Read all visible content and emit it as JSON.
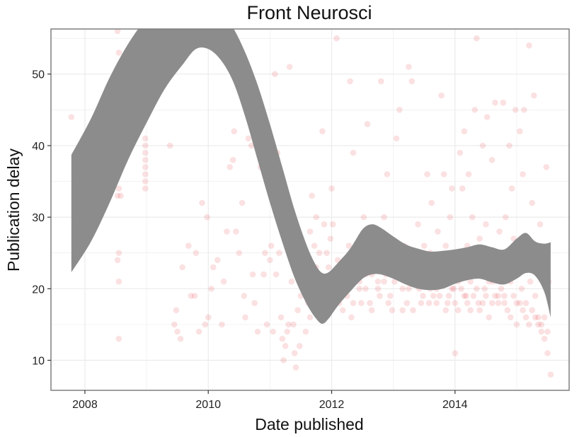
{
  "chart_data": {
    "type": "scatter",
    "title": "Front Neurosci",
    "xlabel": "Date published",
    "ylabel": "Publication delay",
    "xlim": [
      2007.45,
      2015.85
    ],
    "ylim": [
      5.8,
      56.3
    ],
    "x_ticks": [
      2008,
      2010,
      2012,
      2014
    ],
    "x_tick_labels": [
      "2008",
      "2010",
      "2012",
      "2014"
    ],
    "y_ticks": [
      10,
      20,
      30,
      40,
      50
    ],
    "y_tick_labels": [
      "10",
      "20",
      "30",
      "40",
      "50"
    ],
    "grid": true,
    "point_color": "#e31a1c",
    "point_opacity": 0.13,
    "ribbon_color": "#8c8c8c",
    "background_color": "#ffffff",
    "grid_color": "#ebebeb",
    "panel_border_color": "#7f7f7f",
    "points": [
      [
        2007.78,
        44
      ],
      [
        2008.58,
        33
      ],
      [
        2008.53,
        56
      ],
      [
        2008.55,
        53
      ],
      [
        2008.53,
        47
      ],
      [
        2008.55,
        34
      ],
      [
        2008.53,
        33
      ],
      [
        2008.55,
        25
      ],
      [
        2008.53,
        24
      ],
      [
        2008.55,
        21
      ],
      [
        2008.55,
        13
      ],
      [
        2008.98,
        41
      ],
      [
        2008.98,
        40
      ],
      [
        2008.98,
        39
      ],
      [
        2008.98,
        38
      ],
      [
        2008.98,
        37
      ],
      [
        2008.98,
        36
      ],
      [
        2008.98,
        35
      ],
      [
        2008.98,
        34
      ],
      [
        2009.38,
        56
      ],
      [
        2009.38,
        40
      ],
      [
        2009.48,
        17
      ],
      [
        2009.45,
        15
      ],
      [
        2009.5,
        14
      ],
      [
        2009.55,
        13
      ],
      [
        2009.58,
        23
      ],
      [
        2009.68,
        26
      ],
      [
        2009.72,
        19
      ],
      [
        2009.78,
        19
      ],
      [
        2009.8,
        25
      ],
      [
        2009.85,
        14
      ],
      [
        2009.9,
        32
      ],
      [
        2009.95,
        15
      ],
      [
        2009.98,
        30
      ],
      [
        2010.0,
        16
      ],
      [
        2010.05,
        20
      ],
      [
        2010.08,
        23
      ],
      [
        2010.15,
        24
      ],
      [
        2010.22,
        15
      ],
      [
        2010.25,
        21
      ],
      [
        2010.3,
        28
      ],
      [
        2010.35,
        37
      ],
      [
        2010.4,
        38
      ],
      [
        2010.42,
        42
      ],
      [
        2010.45,
        28
      ],
      [
        2010.5,
        25
      ],
      [
        2010.55,
        32
      ],
      [
        2010.58,
        19
      ],
      [
        2010.6,
        16
      ],
      [
        2010.65,
        41
      ],
      [
        2010.7,
        40
      ],
      [
        2010.72,
        22
      ],
      [
        2010.75,
        18
      ],
      [
        2010.8,
        14
      ],
      [
        2010.85,
        37
      ],
      [
        2010.9,
        22
      ],
      [
        2010.92,
        25
      ],
      [
        2010.95,
        15
      ],
      [
        2011.0,
        24
      ],
      [
        2011.02,
        26
      ],
      [
        2011.05,
        14
      ],
      [
        2011.08,
        50
      ],
      [
        2011.1,
        22
      ],
      [
        2011.12,
        39
      ],
      [
        2011.15,
        25
      ],
      [
        2011.18,
        16
      ],
      [
        2011.2,
        13
      ],
      [
        2011.22,
        10
      ],
      [
        2011.25,
        12
      ],
      [
        2011.28,
        14
      ],
      [
        2011.3,
        15
      ],
      [
        2011.32,
        51
      ],
      [
        2011.35,
        21
      ],
      [
        2011.38,
        15
      ],
      [
        2011.4,
        11
      ],
      [
        2011.42,
        9
      ],
      [
        2011.45,
        17
      ],
      [
        2011.48,
        12
      ],
      [
        2011.5,
        19
      ],
      [
        2011.55,
        25
      ],
      [
        2011.58,
        14
      ],
      [
        2011.6,
        21
      ],
      [
        2011.62,
        18
      ],
      [
        2011.65,
        28
      ],
      [
        2011.68,
        33
      ],
      [
        2011.7,
        22
      ],
      [
        2011.72,
        26
      ],
      [
        2011.75,
        30
      ],
      [
        2011.78,
        20
      ],
      [
        2011.8,
        25
      ],
      [
        2011.82,
        17
      ],
      [
        2011.85,
        42
      ],
      [
        2011.88,
        29
      ],
      [
        2011.9,
        19
      ],
      [
        2011.92,
        25
      ],
      [
        2011.95,
        23
      ],
      [
        2011.98,
        27
      ],
      [
        2012.0,
        34
      ],
      [
        2012.02,
        29
      ],
      [
        2012.05,
        21
      ],
      [
        2012.08,
        55
      ],
      [
        2012.1,
        24
      ],
      [
        2012.12,
        18
      ],
      [
        2012.15,
        23
      ],
      [
        2012.18,
        17
      ],
      [
        2012.2,
        24
      ],
      [
        2012.22,
        21
      ],
      [
        2012.25,
        19
      ],
      [
        2012.28,
        26
      ],
      [
        2012.3,
        49
      ],
      [
        2012.32,
        16
      ],
      [
        2012.35,
        39
      ],
      [
        2012.38,
        22
      ],
      [
        2012.4,
        24
      ],
      [
        2012.42,
        25
      ],
      [
        2012.45,
        20
      ],
      [
        2012.48,
        18
      ],
      [
        2012.5,
        23
      ],
      [
        2012.52,
        30
      ],
      [
        2012.55,
        20
      ],
      [
        2012.58,
        43
      ],
      [
        2012.6,
        24
      ],
      [
        2012.62,
        18
      ],
      [
        2012.65,
        22
      ],
      [
        2012.68,
        27
      ],
      [
        2012.7,
        26
      ],
      [
        2012.72,
        25
      ],
      [
        2012.75,
        21
      ],
      [
        2012.78,
        19
      ],
      [
        2012.8,
        49
      ],
      [
        2012.82,
        24
      ],
      [
        2012.85,
        30
      ],
      [
        2012.88,
        22
      ],
      [
        2012.9,
        36
      ],
      [
        2012.92,
        18
      ],
      [
        2012.95,
        23
      ],
      [
        2012.98,
        17
      ],
      [
        2013.0,
        25
      ],
      [
        2013.02,
        21
      ],
      [
        2013.05,
        41
      ],
      [
        2013.08,
        22
      ],
      [
        2013.1,
        45
      ],
      [
        2013.12,
        24
      ],
      [
        2013.15,
        20
      ],
      [
        2013.18,
        26
      ],
      [
        2013.2,
        22
      ],
      [
        2013.22,
        18
      ],
      [
        2013.25,
        51
      ],
      [
        2013.28,
        25
      ],
      [
        2013.3,
        49
      ],
      [
        2013.32,
        17
      ],
      [
        2013.35,
        24
      ],
      [
        2013.38,
        21
      ],
      [
        2013.4,
        29
      ],
      [
        2013.42,
        20
      ],
      [
        2013.45,
        23
      ],
      [
        2013.48,
        19
      ],
      [
        2013.5,
        26
      ],
      [
        2013.52,
        22
      ],
      [
        2013.55,
        36
      ],
      [
        2013.58,
        18
      ],
      [
        2013.6,
        25
      ],
      [
        2013.62,
        32
      ],
      [
        2013.65,
        21
      ],
      [
        2013.68,
        24
      ],
      [
        2013.7,
        20
      ],
      [
        2013.72,
        28
      ],
      [
        2013.75,
        19
      ],
      [
        2013.78,
        47
      ],
      [
        2013.8,
        23
      ],
      [
        2013.82,
        36
      ],
      [
        2013.85,
        26
      ],
      [
        2013.88,
        18
      ],
      [
        2013.9,
        22
      ],
      [
        2013.92,
        30
      ],
      [
        2013.95,
        34
      ],
      [
        2013.98,
        20
      ],
      [
        2014.0,
        11
      ],
      [
        2014.02,
        24
      ],
      [
        2014.05,
        17
      ],
      [
        2014.08,
        39
      ],
      [
        2014.1,
        22
      ],
      [
        2014.12,
        34
      ],
      [
        2014.15,
        42
      ],
      [
        2014.18,
        19
      ],
      [
        2014.2,
        26
      ],
      [
        2014.22,
        36
      ],
      [
        2014.25,
        21
      ],
      [
        2014.28,
        30
      ],
      [
        2014.3,
        24
      ],
      [
        2014.32,
        45
      ],
      [
        2014.35,
        55
      ],
      [
        2014.38,
        18
      ],
      [
        2014.4,
        27
      ],
      [
        2014.42,
        22
      ],
      [
        2014.45,
        40
      ],
      [
        2014.48,
        20
      ],
      [
        2014.5,
        29
      ],
      [
        2014.52,
        44
      ],
      [
        2014.55,
        16
      ],
      [
        2014.58,
        25
      ],
      [
        2014.6,
        38
      ],
      [
        2014.62,
        21
      ],
      [
        2014.65,
        46
      ],
      [
        2014.68,
        24
      ],
      [
        2014.7,
        18
      ],
      [
        2014.72,
        28
      ],
      [
        2014.75,
        22
      ],
      [
        2014.78,
        46
      ],
      [
        2014.8,
        19
      ],
      [
        2014.82,
        30
      ],
      [
        2014.85,
        25
      ],
      [
        2014.88,
        40
      ],
      [
        2014.9,
        21
      ],
      [
        2014.92,
        34
      ],
      [
        2014.95,
        27
      ],
      [
        2014.98,
        45
      ],
      [
        2015.0,
        15
      ],
      [
        2015.02,
        23
      ],
      [
        2015.05,
        42
      ],
      [
        2015.08,
        20
      ],
      [
        2015.1,
        36
      ],
      [
        2015.12,
        45
      ],
      [
        2015.15,
        18
      ],
      [
        2015.18,
        26
      ],
      [
        2015.2,
        54
      ],
      [
        2015.22,
        21
      ],
      [
        2015.25,
        32
      ],
      [
        2015.28,
        47
      ],
      [
        2015.3,
        19
      ],
      [
        2015.32,
        24
      ],
      [
        2015.35,
        16
      ],
      [
        2015.38,
        29
      ],
      [
        2015.4,
        14
      ],
      [
        2015.42,
        22
      ],
      [
        2015.45,
        13
      ],
      [
        2015.48,
        37
      ],
      [
        2015.5,
        11
      ],
      [
        2015.52,
        21
      ],
      [
        2015.55,
        8
      ],
      [
        2011.55,
        20
      ],
      [
        2011.65,
        16
      ],
      [
        2011.75,
        23
      ],
      [
        2011.85,
        18
      ],
      [
        2011.95,
        21
      ],
      [
        2012.05,
        19
      ],
      [
        2012.15,
        20
      ],
      [
        2012.25,
        22
      ],
      [
        2012.35,
        18
      ],
      [
        2012.45,
        21
      ],
      [
        2012.55,
        22
      ],
      [
        2012.65,
        17
      ],
      [
        2012.75,
        20
      ],
      [
        2012.85,
        21
      ],
      [
        2012.95,
        19
      ],
      [
        2013.05,
        22
      ],
      [
        2013.15,
        17
      ],
      [
        2013.25,
        20
      ],
      [
        2013.35,
        22
      ],
      [
        2013.45,
        18
      ],
      [
        2013.55,
        21
      ],
      [
        2013.65,
        19
      ],
      [
        2013.75,
        22
      ],
      [
        2013.85,
        17
      ],
      [
        2013.95,
        20
      ],
      [
        2014.05,
        21
      ],
      [
        2014.15,
        19
      ],
      [
        2014.25,
        17
      ],
      [
        2014.35,
        20
      ],
      [
        2014.45,
        18
      ],
      [
        2014.55,
        21
      ],
      [
        2014.65,
        19
      ],
      [
        2014.75,
        20
      ],
      [
        2014.85,
        17
      ],
      [
        2014.95,
        19
      ],
      [
        2015.05,
        18
      ],
      [
        2015.15,
        16
      ],
      [
        2015.25,
        17
      ],
      [
        2015.35,
        15
      ],
      [
        2015.45,
        16
      ],
      [
        2013.6,
        20
      ],
      [
        2013.7,
        18
      ],
      [
        2013.8,
        21
      ],
      [
        2013.9,
        19
      ],
      [
        2014.0,
        18
      ],
      [
        2014.1,
        20
      ],
      [
        2014.2,
        18
      ],
      [
        2014.3,
        19
      ],
      [
        2014.4,
        17
      ],
      [
        2014.5,
        19
      ],
      [
        2014.6,
        18
      ],
      [
        2014.7,
        19
      ],
      [
        2014.8,
        18
      ],
      [
        2014.9,
        16
      ],
      [
        2015.0,
        18
      ],
      [
        2015.1,
        17
      ],
      [
        2015.2,
        15
      ],
      [
        2015.3,
        16
      ],
      [
        2015.4,
        15
      ],
      [
        2015.5,
        14
      ]
    ],
    "ribbon": {
      "x": [
        2007.78,
        2008.1,
        2008.4,
        2008.7,
        2009.0,
        2009.3,
        2009.6,
        2009.8,
        2010.0,
        2010.2,
        2010.4,
        2010.6,
        2010.8,
        2011.0,
        2011.2,
        2011.4,
        2011.6,
        2011.75,
        2011.85,
        2011.95,
        2012.1,
        2012.3,
        2012.5,
        2012.65,
        2012.8,
        2013.0,
        2013.2,
        2013.4,
        2013.6,
        2013.8,
        2014.0,
        2014.2,
        2014.4,
        2014.6,
        2014.8,
        2015.0,
        2015.15,
        2015.3,
        2015.45,
        2015.55
      ],
      "upper": [
        38.7,
        43.8,
        49.5,
        54.2,
        57.8,
        60.2,
        61.0,
        60.8,
        60.0,
        58.8,
        56.5,
        53.0,
        48.5,
        43.0,
        37.0,
        31.0,
        26.0,
        23.2,
        22.2,
        22.3,
        23.6,
        25.6,
        28.3,
        29.0,
        28.5,
        27.3,
        26.2,
        25.6,
        25.2,
        25.3,
        25.5,
        25.8,
        26.2,
        25.8,
        25.5,
        27.0,
        27.8,
        26.6,
        26.3,
        26.5
      ],
      "lower": [
        22.3,
        26.6,
        32.0,
        38.0,
        43.2,
        48.0,
        51.5,
        53.5,
        53.5,
        52.0,
        49.0,
        44.0,
        38.0,
        32.0,
        26.5,
        21.5,
        17.8,
        15.8,
        15.1,
        15.8,
        17.6,
        19.6,
        21.4,
        22.0,
        22.0,
        21.4,
        20.6,
        20.0,
        19.8,
        20.0,
        20.7,
        21.2,
        21.4,
        20.9,
        20.6,
        21.4,
        22.2,
        21.8,
        19.5,
        16.0
      ]
    }
  }
}
